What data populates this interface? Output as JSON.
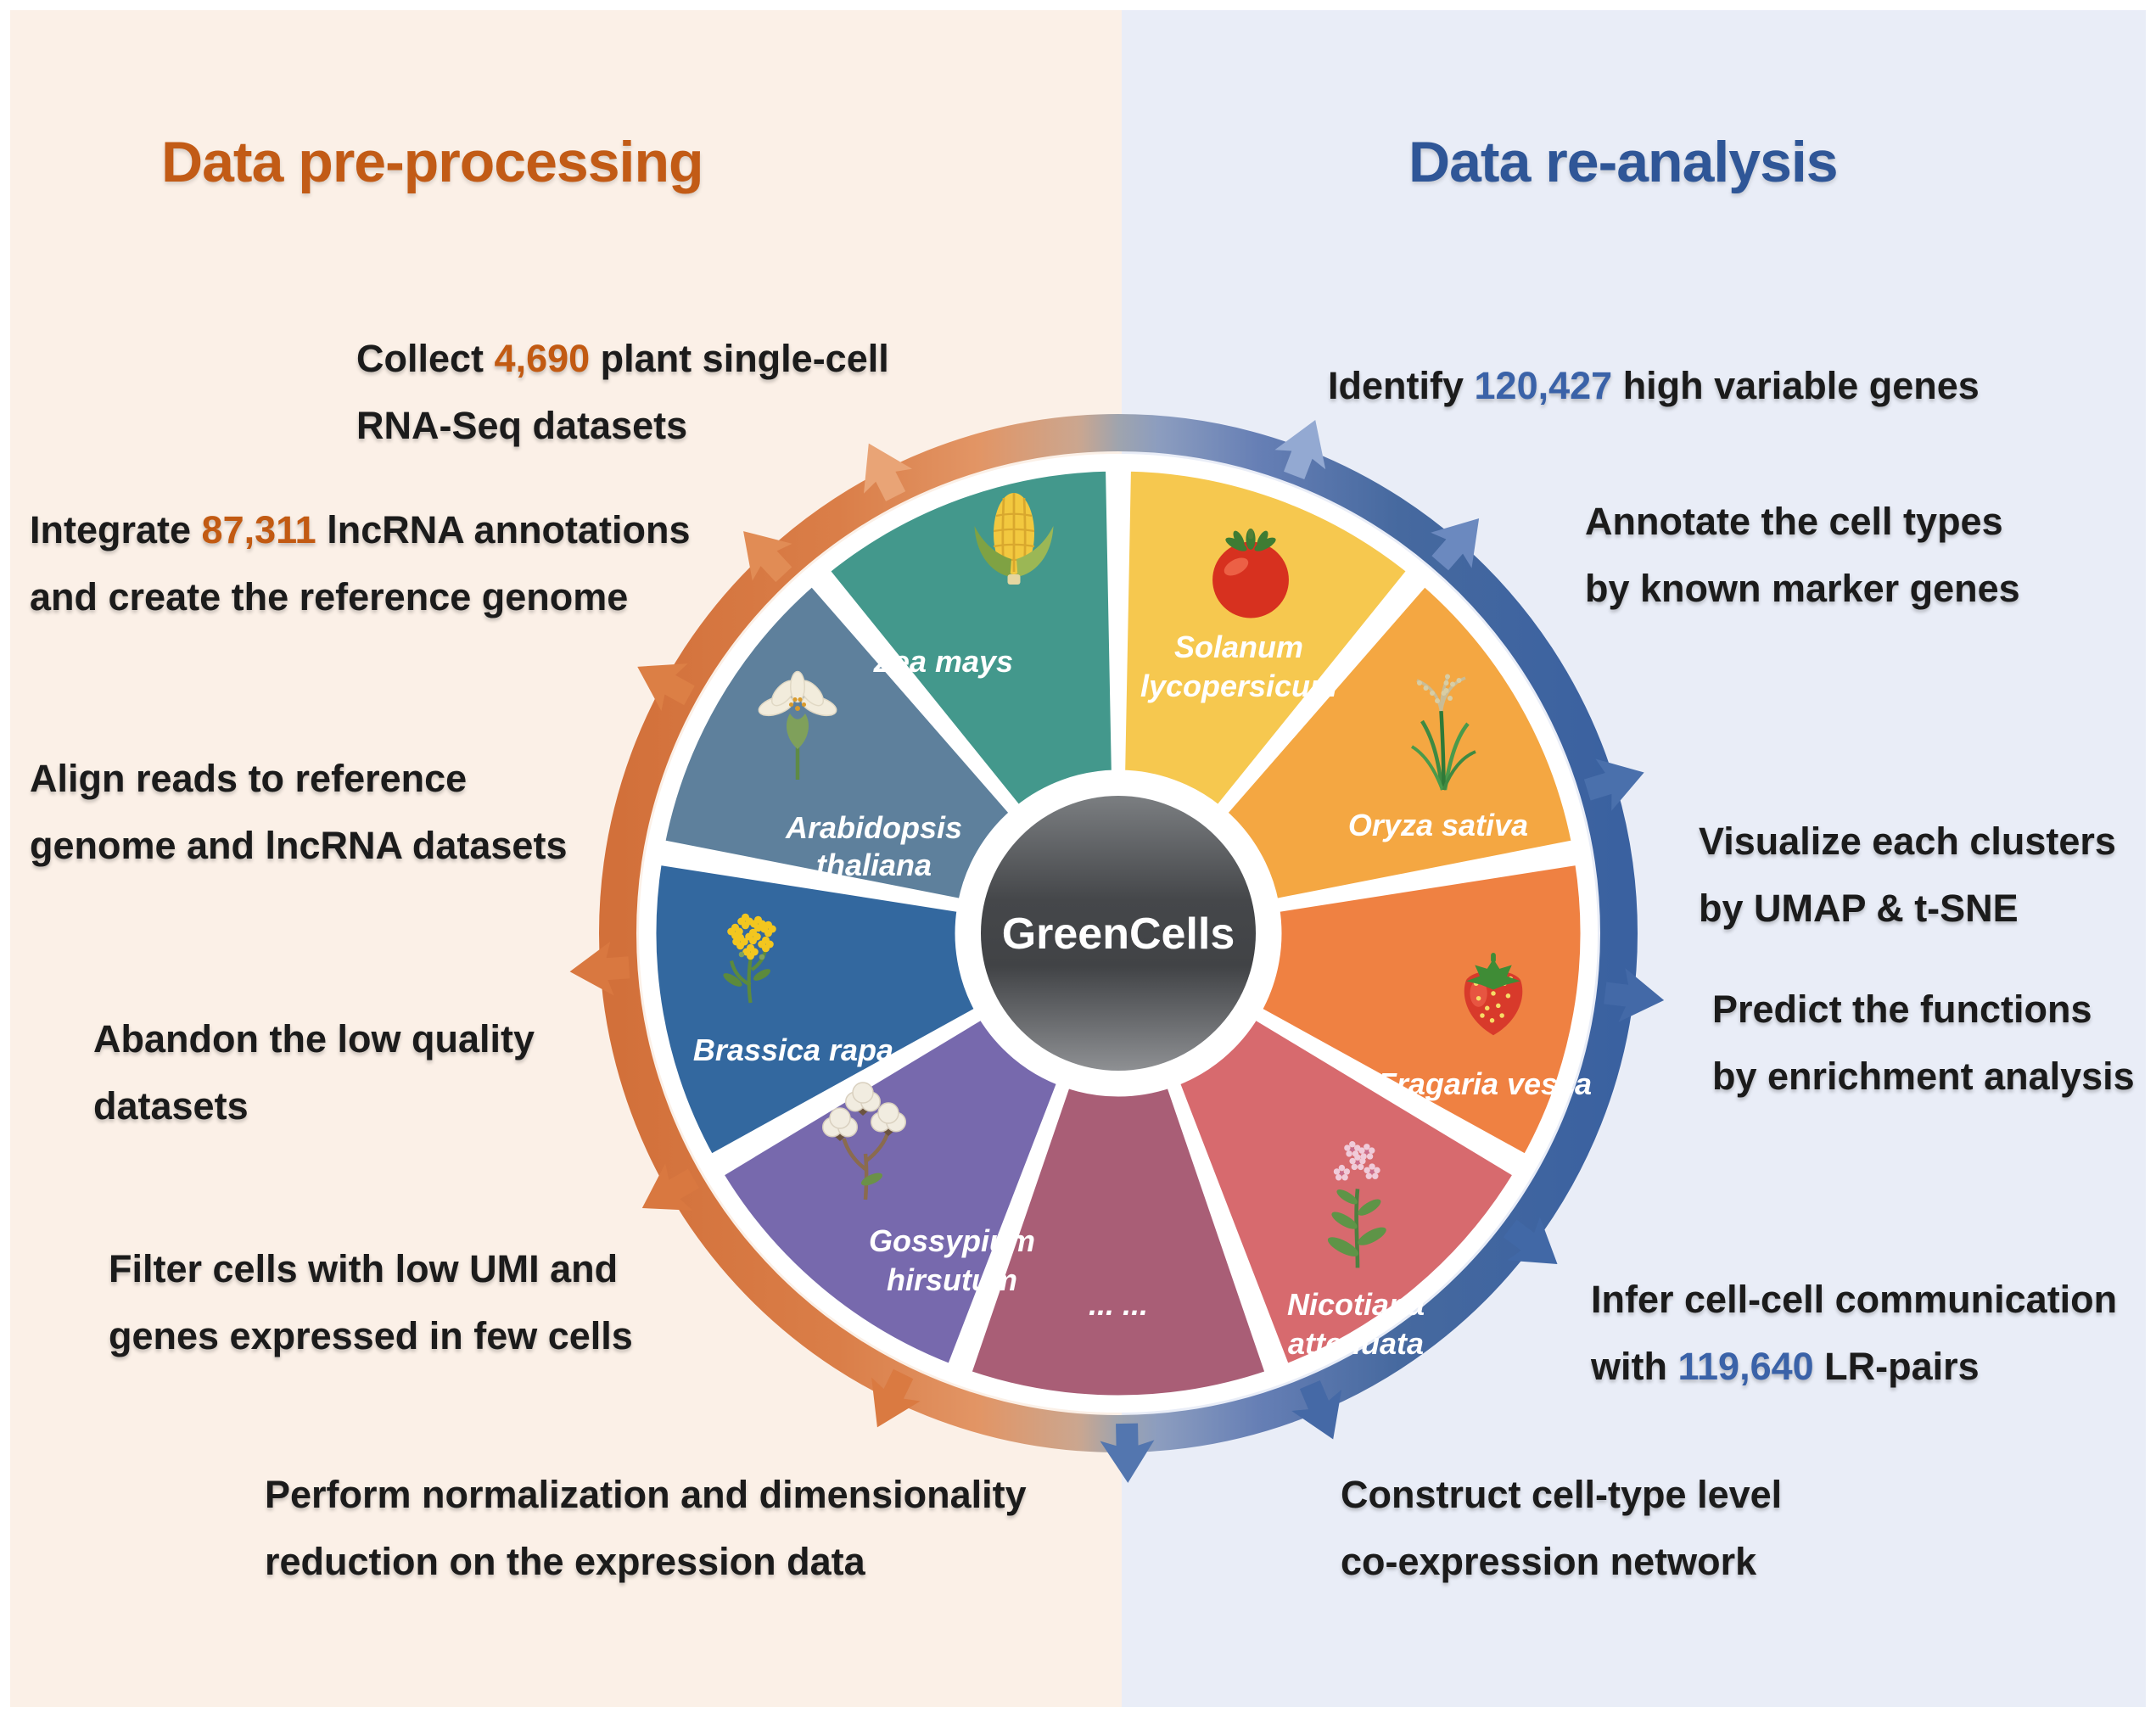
{
  "page": {
    "background_left": "#FBF0E7",
    "background_right": "#E9EDF7"
  },
  "titles": {
    "left": {
      "text": "Data pre-processing",
      "color": "#C25B16"
    },
    "right": {
      "text": "Data re-analysis",
      "color": "#2F5697"
    }
  },
  "center": {
    "label": "GreenCells",
    "circle_color": "#46484B"
  },
  "highlight_colors": {
    "left": "#C25A12",
    "right": "#3A62A8"
  },
  "wheel": {
    "ring_left_color": "#DB7C41",
    "ring_right_color": "#3E65A4",
    "ring_top_gray": "#9FA4AE",
    "segments": [
      {
        "name": "Solanum lycopersicum",
        "label_lines": [
          "Solanum",
          "lycopersicum"
        ],
        "color": "#F6C84F",
        "icon": "tomato-icon"
      },
      {
        "name": "Oryza sativa",
        "label_lines": [
          "Oryza sativa"
        ],
        "color": "#F4A742",
        "icon": "rice-plant-icon"
      },
      {
        "name": "Fragaria vesca",
        "label_lines": [
          "Fragaria vesca"
        ],
        "color": "#EF8142",
        "icon": "strawberry-icon"
      },
      {
        "name": "Nicotiana attenuata",
        "label_lines": [
          "Nicotiana",
          "attenuata"
        ],
        "color": "#D76A6E",
        "icon": "tobacco-plant-icon"
      },
      {
        "name": "... ...",
        "label_lines": [
          "... ..."
        ],
        "color": "#A95E76",
        "icon": null
      },
      {
        "name": "Gossypium hirsutum",
        "label_lines": [
          "Gossypium",
          "hirsutum"
        ],
        "color": "#7769AD",
        "icon": "cotton-plant-icon"
      },
      {
        "name": "Brassica rapa",
        "label_lines": [
          "Brassica rapa"
        ],
        "color": "#33689F",
        "icon": "brassica-flower-icon"
      },
      {
        "name": "Arabidopsis thaliana",
        "label_lines": [
          "Arabidopsis",
          "thaliana"
        ],
        "color": "#5E809C",
        "icon": "arabidopsis-flower-icon"
      },
      {
        "name": "Zea mays",
        "label_lines": [
          "Zea mays"
        ],
        "color": "#43988C",
        "icon": "corn-icon"
      }
    ]
  },
  "annotations": {
    "left": [
      {
        "id": "collect-datasets",
        "lines": [
          [
            {
              "t": "Collect "
            },
            {
              "t": "4,690",
              "hl": true
            },
            {
              "t": " plant single-cell"
            }
          ],
          [
            {
              "t": "RNA-Seq datasets"
            }
          ]
        ]
      },
      {
        "id": "integrate-lncrna",
        "lines": [
          [
            {
              "t": "Integrate "
            },
            {
              "t": "87,311",
              "hl": true
            },
            {
              "t": " lncRNA annotations"
            }
          ],
          [
            {
              "t": "and create the reference genome"
            }
          ]
        ]
      },
      {
        "id": "align-reads",
        "lines": [
          [
            {
              "t": "Align reads to reference"
            }
          ],
          [
            {
              "t": "genome and lncRNA datasets"
            }
          ]
        ]
      },
      {
        "id": "abandon-low-quality",
        "lines": [
          [
            {
              "t": "Abandon the low quality"
            }
          ],
          [
            {
              "t": "datasets"
            }
          ]
        ]
      },
      {
        "id": "filter-cells",
        "lines": [
          [
            {
              "t": "Filter cells with low UMI and"
            }
          ],
          [
            {
              "t": "genes expressed in few cells"
            }
          ]
        ]
      },
      {
        "id": "perform-normalization",
        "lines": [
          [
            {
              "t": "Perform normalization and dimensionality"
            }
          ],
          [
            {
              "t": "reduction on the expression data"
            }
          ]
        ]
      }
    ],
    "right": [
      {
        "id": "identify-hvg",
        "lines": [
          [
            {
              "t": "Identify "
            },
            {
              "t": "120,427",
              "hl": true
            },
            {
              "t": " high variable genes"
            }
          ]
        ]
      },
      {
        "id": "annotate-cell-types",
        "lines": [
          [
            {
              "t": "Annotate the cell types"
            }
          ],
          [
            {
              "t": "by known marker genes"
            }
          ]
        ]
      },
      {
        "id": "visualize-clusters",
        "lines": [
          [
            {
              "t": "Visualize each clusters"
            }
          ],
          [
            {
              "t": "by UMAP & t-SNE"
            }
          ]
        ]
      },
      {
        "id": "predict-functions",
        "lines": [
          [
            {
              "t": "Predict the functions"
            }
          ],
          [
            {
              "t": "by enrichment analysis"
            }
          ]
        ]
      },
      {
        "id": "infer-communication",
        "lines": [
          [
            {
              "t": "Infer cell-cell communication"
            }
          ],
          [
            {
              "t": "with "
            },
            {
              "t": "119,640",
              "hl": true
            },
            {
              "t": " LR-pairs"
            }
          ]
        ]
      },
      {
        "id": "construct-network",
        "lines": [
          [
            {
              "t": "Construct cell-type level"
            }
          ],
          [
            {
              "t": "co-expression network"
            }
          ]
        ]
      }
    ]
  }
}
